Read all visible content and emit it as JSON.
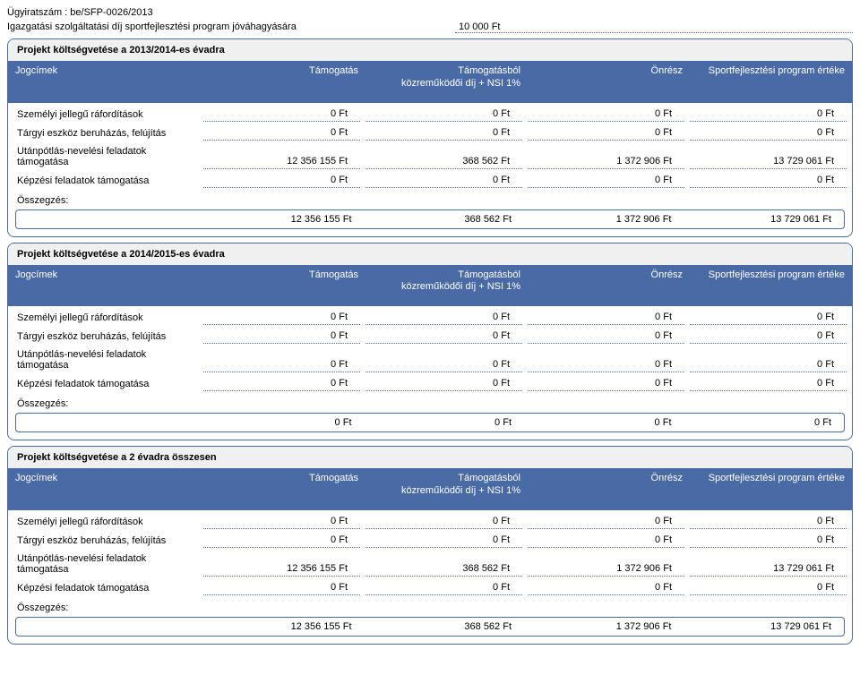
{
  "case_number_label": "Ügyiratszám : be/SFP-0026/2013",
  "page_subtitle": "Igazgatási szolgáltatási díj sportfejlesztési program jóváhagyására",
  "page_fee": "10 000 Ft",
  "headers": {
    "col1": "Jogcímek",
    "col2": "Támogatás",
    "col3_line1": "Támogatásból",
    "col3_line2": "közreműködői díj + NSI 1%",
    "col4": "Önrész",
    "col5": "Sportfejlesztési program értéke"
  },
  "row_labels": {
    "r1": "Személyi jellegű ráfordítások",
    "r2": "Tárgyi eszköz beruházás, felújítás",
    "r3": "Utánpótlás-nevelési feladatok támogatása",
    "r4": "Képzési feladatok támogatása",
    "summary": "Összegzés:"
  },
  "sections": [
    {
      "title": "Projekt költségvetése a 2013/2014-es évadra",
      "rows": [
        [
          "0 Ft",
          "0 Ft",
          "0 Ft",
          "0 Ft"
        ],
        [
          "0 Ft",
          "0 Ft",
          "0 Ft",
          "0 Ft"
        ],
        [
          "12 356 155 Ft",
          "368 562 Ft",
          "1 372 906 Ft",
          "13 729 061 Ft"
        ],
        [
          "0 Ft",
          "0 Ft",
          "0 Ft",
          "0 Ft"
        ]
      ],
      "summary": [
        "12 356 155 Ft",
        "368 562 Ft",
        "1 372 906 Ft",
        "13 729 061 Ft"
      ]
    },
    {
      "title": "Projekt költségvetése a 2014/2015-es évadra",
      "rows": [
        [
          "0 Ft",
          "0 Ft",
          "0 Ft",
          "0 Ft"
        ],
        [
          "0 Ft",
          "0 Ft",
          "0 Ft",
          "0 Ft"
        ],
        [
          "0 Ft",
          "0 Ft",
          "0 Ft",
          "0 Ft"
        ],
        [
          "0 Ft",
          "0 Ft",
          "0 Ft",
          "0 Ft"
        ]
      ],
      "summary": [
        "0 Ft",
        "0 Ft",
        "0 Ft",
        "0 Ft"
      ]
    },
    {
      "title": "Projekt költségvetése a 2 évadra összesen",
      "rows": [
        [
          "0 Ft",
          "0 Ft",
          "0 Ft",
          "0 Ft"
        ],
        [
          "0 Ft",
          "0 Ft",
          "0 Ft",
          "0 Ft"
        ],
        [
          "12 356 155 Ft",
          "368 562 Ft",
          "1 372 906 Ft",
          "13 729 061 Ft"
        ],
        [
          "0 Ft",
          "0 Ft",
          "0 Ft",
          "0 Ft"
        ]
      ],
      "summary": [
        "12 356 155 Ft",
        "368 562 Ft",
        "1 372 906 Ft",
        "13 729 061 Ft"
      ]
    }
  ],
  "colors": {
    "header_bg": "#4a6aa5",
    "header_text": "#ffffff",
    "border": "#4a6aa5",
    "dotted": "#4a6aa5",
    "section_title_bg": "#f0f0f0"
  }
}
